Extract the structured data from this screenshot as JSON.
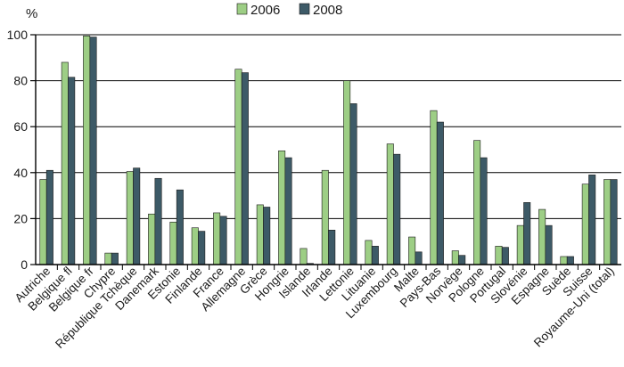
{
  "chart_data": {
    "type": "bar",
    "ylabel": "%",
    "ylim": [
      0,
      100
    ],
    "yticks": [
      0,
      20,
      40,
      60,
      80,
      100
    ],
    "grid": true,
    "legend_position": "top",
    "categories": [
      "Autriche",
      "Belgique fl",
      "Belgique fr",
      "Chypre",
      "République Tchèque",
      "Danemark",
      "Estonie",
      "Finlande",
      "France",
      "Allemagne",
      "Grèce",
      "Hongrie",
      "Islande",
      "Irlande",
      "Lettonie",
      "Lituanie",
      "Luxembourg",
      "Malte",
      "Pays-Bas",
      "Norvège",
      "Pologne",
      "Portugal",
      "Slovénie",
      "Espagne",
      "Suède",
      "Suisse",
      "Royaume-Uni (total)"
    ],
    "series": [
      {
        "name": "2006",
        "color": "#9dce85",
        "values": [
          37,
          88,
          99.5,
          5,
          40.5,
          22,
          18.5,
          16,
          22.5,
          85,
          26,
          49.5,
          7,
          41,
          80,
          10.5,
          52.5,
          12,
          67,
          6,
          54,
          8,
          17,
          24,
          3.5,
          35,
          37
        ]
      },
      {
        "name": "2008",
        "color": "#3d5a67",
        "values": [
          41,
          81.5,
          99,
          5,
          42,
          37.5,
          32.5,
          14.5,
          21,
          83.5,
          25,
          46.5,
          0.5,
          15,
          70,
          8,
          48,
          5.5,
          62,
          4,
          46.5,
          7.5,
          27,
          17,
          3.5,
          39,
          37
        ]
      }
    ]
  },
  "legend": {
    "items": [
      {
        "label": "2006",
        "color": "#9dce85"
      },
      {
        "label": "2008",
        "color": "#3d5a67"
      }
    ]
  },
  "y_unit_label": "%"
}
